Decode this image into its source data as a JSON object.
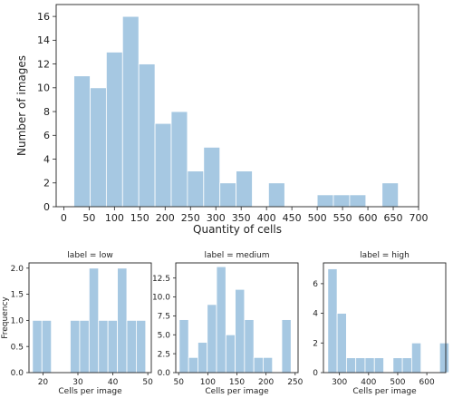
{
  "chart_data": [
    {
      "type": "bar",
      "subtype": "histogram",
      "xlabel": "Quantity of cells",
      "ylabel": "Number of images",
      "xlim": [
        -15,
        700
      ],
      "ylim": [
        0,
        17
      ],
      "xticks": [
        0,
        50,
        100,
        150,
        200,
        250,
        300,
        350,
        400,
        450,
        500,
        550,
        600,
        650,
        700
      ],
      "yticks": [
        0,
        2,
        4,
        6,
        8,
        10,
        12,
        14,
        16
      ],
      "color": "#a6c8e2",
      "bins": [
        {
          "x0": 20,
          "x1": 52,
          "count": 11
        },
        {
          "x0": 52,
          "x1": 84,
          "count": 10
        },
        {
          "x0": 84,
          "x1": 116,
          "count": 13
        },
        {
          "x0": 116,
          "x1": 148,
          "count": 16
        },
        {
          "x0": 148,
          "x1": 180,
          "count": 12
        },
        {
          "x0": 180,
          "x1": 212,
          "count": 7
        },
        {
          "x0": 212,
          "x1": 244,
          "count": 8
        },
        {
          "x0": 244,
          "x1": 276,
          "count": 3
        },
        {
          "x0": 276,
          "x1": 308,
          "count": 5
        },
        {
          "x0": 308,
          "x1": 340,
          "count": 2
        },
        {
          "x0": 340,
          "x1": 372,
          "count": 3
        },
        {
          "x0": 372,
          "x1": 404,
          "count": 0
        },
        {
          "x0": 404,
          "x1": 436,
          "count": 2
        },
        {
          "x0": 436,
          "x1": 468,
          "count": 0
        },
        {
          "x0": 468,
          "x1": 500,
          "count": 0
        },
        {
          "x0": 500,
          "x1": 532,
          "count": 1
        },
        {
          "x0": 532,
          "x1": 564,
          "count": 1
        },
        {
          "x0": 564,
          "x1": 596,
          "count": 1
        },
        {
          "x0": 596,
          "x1": 628,
          "count": 0
        },
        {
          "x0": 628,
          "x1": 660,
          "count": 2
        }
      ]
    },
    {
      "type": "bar",
      "subtype": "histogram",
      "title": "label = low",
      "xlabel": "Cells per image",
      "ylabel": "Frequency",
      "xlim": [
        16,
        51
      ],
      "ylim": [
        0,
        2.1
      ],
      "xticks": [
        20,
        30,
        40,
        50
      ],
      "yticks": [
        0.0,
        0.5,
        1.0,
        1.5,
        2.0
      ],
      "ytick_format": "1dp",
      "color": "#a6c8e2",
      "bins": [
        {
          "x0": 17,
          "x1": 19.7,
          "count": 1
        },
        {
          "x0": 19.7,
          "x1": 22.4,
          "count": 1
        },
        {
          "x0": 22.4,
          "x1": 25.1,
          "count": 0
        },
        {
          "x0": 25.1,
          "x1": 27.8,
          "count": 0
        },
        {
          "x0": 27.8,
          "x1": 30.5,
          "count": 1
        },
        {
          "x0": 30.5,
          "x1": 33.2,
          "count": 1
        },
        {
          "x0": 33.2,
          "x1": 35.9,
          "count": 2
        },
        {
          "x0": 35.9,
          "x1": 38.6,
          "count": 1
        },
        {
          "x0": 38.6,
          "x1": 41.3,
          "count": 1
        },
        {
          "x0": 41.3,
          "x1": 44.0,
          "count": 2
        },
        {
          "x0": 44.0,
          "x1": 46.7,
          "count": 1
        },
        {
          "x0": 46.7,
          "x1": 49.4,
          "count": 1
        }
      ]
    },
    {
      "type": "bar",
      "subtype": "histogram",
      "title": "label = medium",
      "xlabel": "Cells per image",
      "ylabel": "",
      "xlim": [
        45,
        255
      ],
      "ylim": [
        0,
        14.5
      ],
      "xticks": [
        50,
        100,
        150,
        200,
        250
      ],
      "yticks": [
        0.0,
        2.5,
        5.0,
        7.5,
        10.0,
        12.5
      ],
      "ytick_format": "1dp",
      "color": "#a6c8e2",
      "bins": [
        {
          "x0": 51,
          "x1": 67,
          "count": 7
        },
        {
          "x0": 67,
          "x1": 83,
          "count": 2
        },
        {
          "x0": 83,
          "x1": 99,
          "count": 4
        },
        {
          "x0": 99,
          "x1": 115,
          "count": 9
        },
        {
          "x0": 115,
          "x1": 131,
          "count": 14
        },
        {
          "x0": 131,
          "x1": 147,
          "count": 5
        },
        {
          "x0": 147,
          "x1": 163,
          "count": 11
        },
        {
          "x0": 163,
          "x1": 179,
          "count": 7
        },
        {
          "x0": 179,
          "x1": 195,
          "count": 2
        },
        {
          "x0": 195,
          "x1": 211,
          "count": 2
        },
        {
          "x0": 211,
          "x1": 227,
          "count": 0
        },
        {
          "x0": 227,
          "x1": 243,
          "count": 7
        }
      ]
    },
    {
      "type": "bar",
      "subtype": "histogram",
      "title": "label = high",
      "xlabel": "Cells per image",
      "ylabel": "",
      "xlim": [
        245,
        665
      ],
      "ylim": [
        0,
        7.4
      ],
      "xticks": [
        300,
        400,
        500,
        600
      ],
      "yticks": [
        0,
        2,
        4,
        6
      ],
      "ytick_format": "int",
      "color": "#a6c8e2",
      "bins": [
        {
          "x0": 260,
          "x1": 292,
          "count": 7
        },
        {
          "x0": 292,
          "x1": 324,
          "count": 4
        },
        {
          "x0": 324,
          "x1": 356,
          "count": 1
        },
        {
          "x0": 356,
          "x1": 388,
          "count": 1
        },
        {
          "x0": 388,
          "x1": 420,
          "count": 1
        },
        {
          "x0": 420,
          "x1": 452,
          "count": 1
        },
        {
          "x0": 452,
          "x1": 484,
          "count": 0
        },
        {
          "x0": 484,
          "x1": 516,
          "count": 1
        },
        {
          "x0": 516,
          "x1": 548,
          "count": 1
        },
        {
          "x0": 548,
          "x1": 580,
          "count": 2
        },
        {
          "x0": 580,
          "x1": 612,
          "count": 0
        },
        {
          "x0": 612,
          "x1": 644,
          "count": 0
        },
        {
          "x0": 644,
          "x1": 676,
          "count": 2
        }
      ]
    }
  ]
}
